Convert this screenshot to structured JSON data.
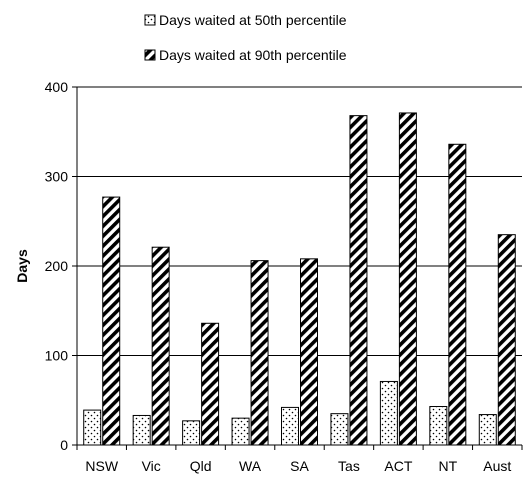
{
  "chart_data": {
    "type": "bar",
    "ylabel": "Days",
    "xlabel": "",
    "ylim": [
      0,
      400
    ],
    "yticks": [
      0,
      100,
      200,
      300,
      400
    ],
    "grid": true,
    "legend_position": "top",
    "categories": [
      "NSW",
      "Vic",
      "Qld",
      "WA",
      "SA",
      "Tas",
      "ACT",
      "NT",
      "Aust"
    ],
    "series": [
      {
        "name": "Days waited at 50th percentile",
        "pattern": "dots",
        "values": [
          39,
          33,
          27,
          30,
          42,
          35,
          71,
          43,
          34
        ]
      },
      {
        "name": "Days waited at 90th percentile",
        "pattern": "diagonal-hatch",
        "values": [
          277,
          221,
          136,
          206,
          208,
          368,
          371,
          336,
          235
        ]
      }
    ]
  }
}
